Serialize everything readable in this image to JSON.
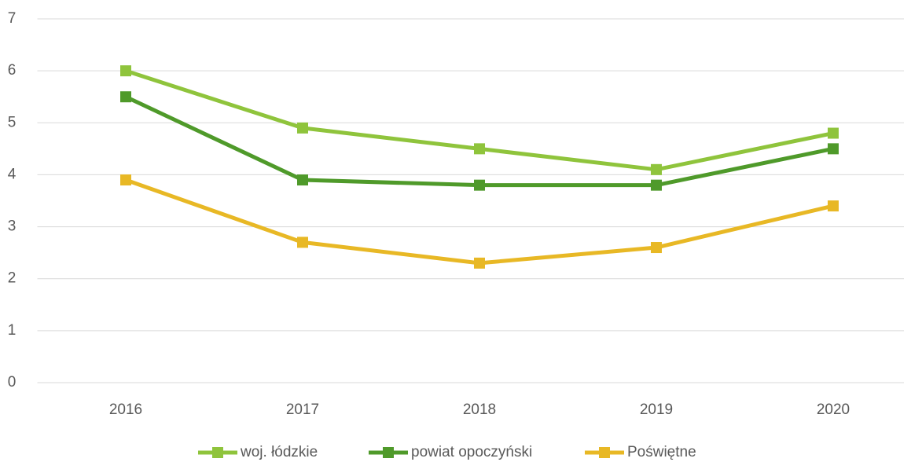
{
  "chart_data": {
    "type": "line",
    "categories": [
      "2016",
      "2017",
      "2018",
      "2019",
      "2020"
    ],
    "series": [
      {
        "name": "woj. łódzkie",
        "color": "#8fc43c",
        "values": [
          6.0,
          4.9,
          4.5,
          4.1,
          4.8
        ]
      },
      {
        "name": "powiat opoczyński",
        "color": "#4f9a2a",
        "values": [
          5.5,
          3.9,
          3.8,
          3.8,
          4.5
        ]
      },
      {
        "name": "Poświętne",
        "color": "#e8b825",
        "values": [
          3.9,
          2.7,
          2.3,
          2.6,
          3.4
        ]
      }
    ],
    "ylim": [
      0,
      7
    ],
    "yticks": [
      0,
      1,
      2,
      3,
      4,
      5,
      6,
      7
    ],
    "grid": true,
    "legend": "bottom"
  }
}
